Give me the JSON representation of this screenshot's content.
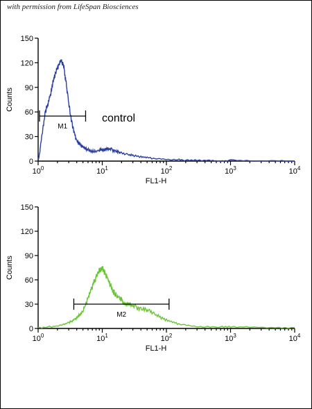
{
  "credit": "with permission from LifeSpan Biosciences",
  "chart_data": [
    {
      "type": "line",
      "xlabel": "FL1-H",
      "ylabel": "Counts",
      "xscale": "log",
      "xlim": [
        1,
        10000
      ],
      "ylim": [
        0,
        150
      ],
      "yticks": [
        "0",
        "30",
        "60",
        "90",
        "120",
        "150"
      ],
      "xticks": [
        {
          "base": "10",
          "exp": "0"
        },
        {
          "base": "10",
          "exp": "1"
        },
        {
          "base": "10",
          "exp": "2"
        },
        {
          "base": "10",
          "exp": "3"
        },
        {
          "base": "10",
          "exp": "4"
        }
      ],
      "annotation": "control",
      "gate": {
        "label": "M1",
        "from": 1.05,
        "to": 5.5,
        "y": 55
      },
      "color": "#2b3fa0",
      "series": [
        {
          "x": [
            1.0,
            1.05,
            1.1,
            1.2,
            1.3,
            1.45,
            1.6,
            1.75,
            1.9,
            2.0,
            2.1,
            2.25,
            2.4,
            2.55,
            2.7,
            2.9,
            3.1,
            3.4,
            3.7,
            4.0,
            4.5,
            5.0,
            5.6,
            6.3,
            7.0,
            8.0,
            9.0,
            10.0,
            11.0,
            12.5,
            14.0,
            16.0,
            18.0,
            20.0,
            25.0,
            30.0,
            40.0,
            50.0,
            70.0,
            100.0,
            150.0,
            200.0,
            300.0,
            500.0,
            700.0,
            1000.0,
            2000.0,
            5000.0,
            10000.0
          ],
          "y": [
            2,
            8,
            22,
            42,
            60,
            72,
            85,
            100,
            110,
            114,
            118,
            122,
            120,
            112,
            98,
            80,
            62,
            45,
            32,
            25,
            20,
            17,
            15,
            13,
            12,
            12,
            13,
            14,
            14,
            15,
            14,
            12,
            11,
            10,
            8,
            7,
            5,
            4,
            3,
            2,
            2,
            1,
            1,
            1,
            0,
            1,
            0,
            0,
            0
          ]
        }
      ]
    },
    {
      "type": "line",
      "xlabel": "FL1-H",
      "ylabel": "Counts",
      "xscale": "log",
      "xlim": [
        1,
        10000
      ],
      "ylim": [
        0,
        150
      ],
      "yticks": [
        "0",
        "30",
        "60",
        "90",
        "120",
        "150"
      ],
      "xticks": [
        {
          "base": "10",
          "exp": "0"
        },
        {
          "base": "10",
          "exp": "1"
        },
        {
          "base": "10",
          "exp": "2"
        },
        {
          "base": "10",
          "exp": "3"
        },
        {
          "base": "10",
          "exp": "4"
        }
      ],
      "gate": {
        "label": "M2",
        "from": 3.6,
        "to": 110,
        "y": 30
      },
      "color": "#6cc43a",
      "series": [
        {
          "x": [
            1.0,
            1.5,
            2.0,
            2.5,
            3.0,
            3.5,
            4.0,
            4.5,
            5.0,
            5.5,
            6.0,
            6.5,
            7.0,
            7.5,
            8.0,
            8.5,
            9.0,
            9.5,
            10.0,
            10.5,
            11.0,
            12.0,
            13.0,
            14.0,
            15.0,
            17.0,
            19.0,
            21.0,
            24.0,
            28.0,
            33.0,
            40.0,
            48.0,
            55.0,
            65.0,
            80.0,
            100.0,
            130.0,
            170.0,
            250.0,
            400.0,
            700.0,
            1000.0,
            2000.0,
            5000.0,
            10000.0
          ],
          "y": [
            1,
            2,
            3,
            5,
            7,
            10,
            13,
            17,
            22,
            30,
            38,
            45,
            52,
            58,
            63,
            68,
            71,
            73,
            74,
            72,
            68,
            62,
            56,
            50,
            45,
            40,
            37,
            33,
            30,
            29,
            26,
            24,
            23,
            22,
            18,
            14,
            10,
            7,
            5,
            3,
            2,
            2,
            2,
            2,
            1,
            1
          ]
        }
      ]
    }
  ]
}
